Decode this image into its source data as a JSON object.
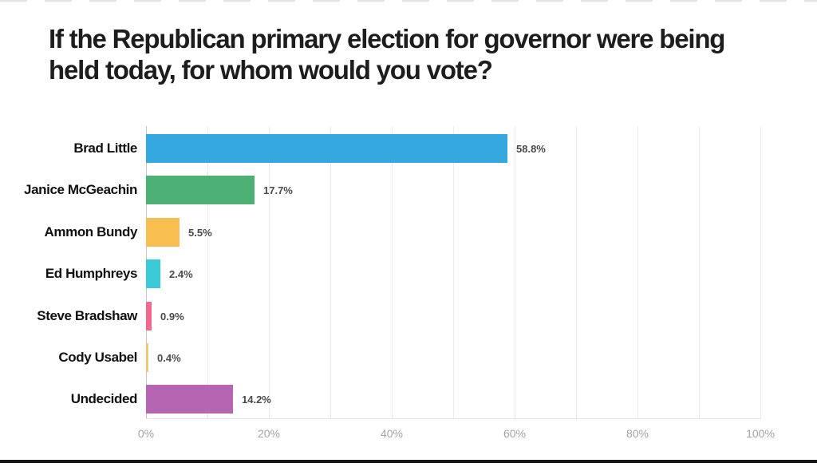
{
  "title": "If the Republican primary election for governor were being held today, for whom would you vote?",
  "chart_data": {
    "type": "bar",
    "orientation": "horizontal",
    "title": "If the Republican primary election for governor were being held today, for whom would you vote?",
    "categories": [
      "Brad Little",
      "Janice McGeachin",
      "Ammon Bundy",
      "Ed Humphreys",
      "Steve Bradshaw",
      "Cody Usabel",
      "Undecided"
    ],
    "values": [
      58.8,
      17.7,
      5.5,
      2.4,
      0.9,
      0.4,
      14.2
    ],
    "value_labels": [
      "58.8%",
      "17.7%",
      "5.5%",
      "2.4%",
      "0.9%",
      "0.4%",
      "14.2%"
    ],
    "bar_colors": [
      "#35a8e0",
      "#4db176",
      "#f7bf4f",
      "#3acbd9",
      "#f4688f",
      "#f8c776",
      "#b665b3"
    ],
    "x_ticks": [
      "0%",
      "20%",
      "40%",
      "60%",
      "80%",
      "100%"
    ],
    "xlabel": "",
    "ylabel": "",
    "xlim": [
      0,
      100
    ],
    "grid": "vertical gridlines every 10%",
    "legend": "none"
  },
  "colors": {
    "background": "#ffffff",
    "title_text": "#1d1d1d",
    "category_text": "#111111",
    "value_text": "#4a4a4a",
    "axis_tick_text": "#a3a3a3",
    "gridline": "#ebebeb",
    "zero_line": "#c6c6c6",
    "bottom_rule": "#161616"
  }
}
